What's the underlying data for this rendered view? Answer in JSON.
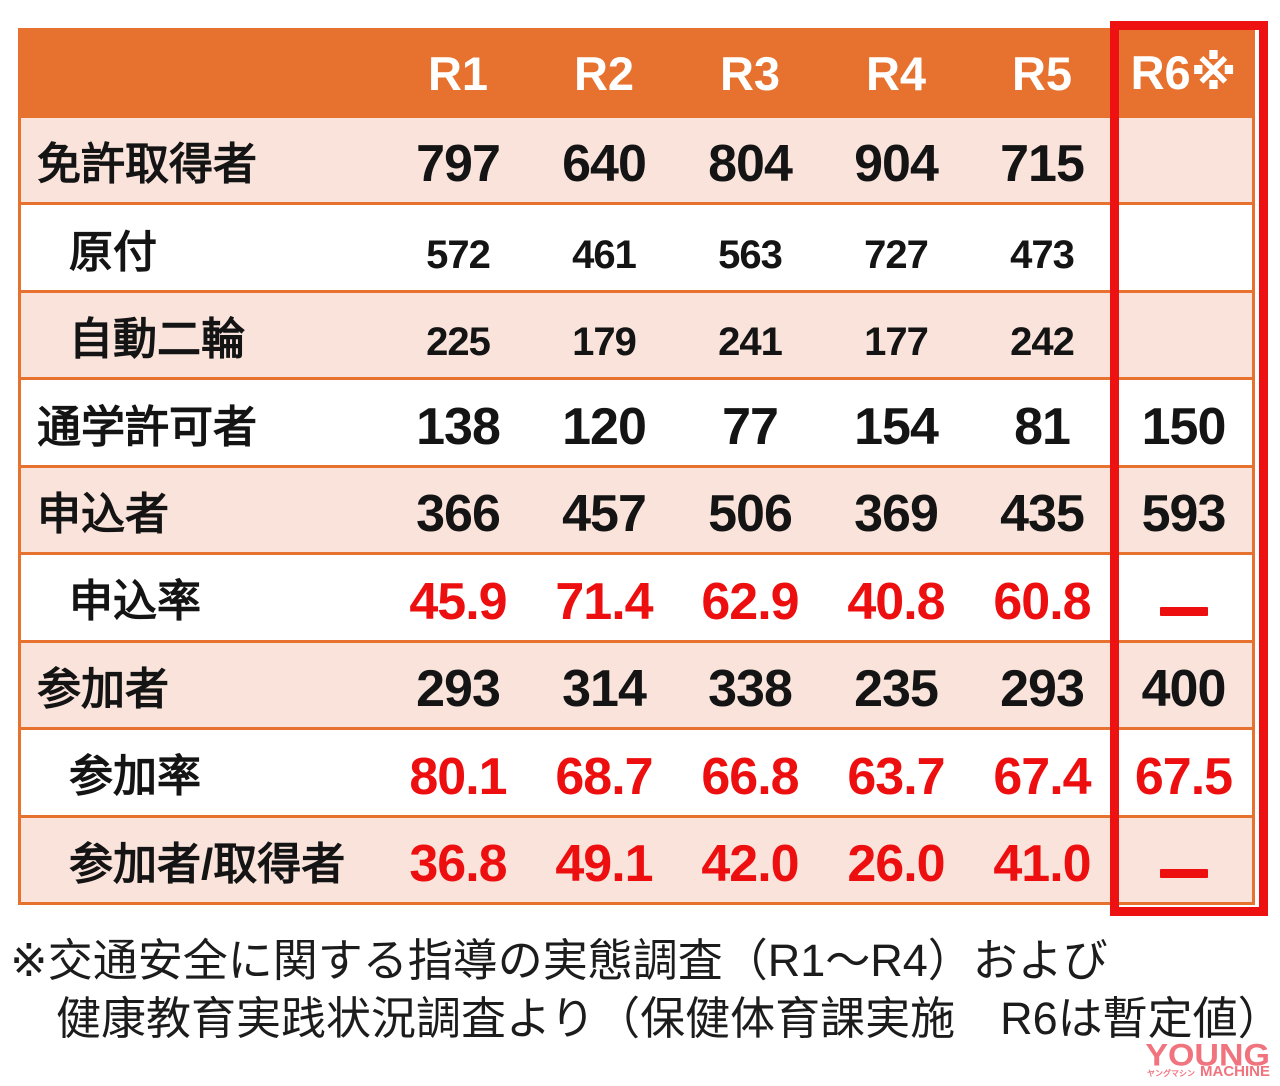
{
  "colors": {
    "header_bg": "#e7722f",
    "grid_line": "#e7722f",
    "row_pink": "#f9e3db",
    "row_white": "#ffffff",
    "value_red": "#ed0f0f",
    "highlight_red": "#ed1111",
    "text_black": "#141414",
    "logo_pink": "#f0737e"
  },
  "table": {
    "header": {
      "cells": [
        "",
        "R1",
        "R2",
        "R3",
        "R4",
        "R5",
        "R6※"
      ]
    },
    "rows": [
      {
        "label": "免許取得者",
        "indent": false,
        "values_size": "large",
        "values_color": "black",
        "values": [
          "797",
          "640",
          "804",
          "904",
          "715",
          ""
        ]
      },
      {
        "label": "原付",
        "indent": true,
        "values_size": "small",
        "values_color": "black",
        "values": [
          "572",
          "461",
          "563",
          "727",
          "473",
          ""
        ]
      },
      {
        "label": "自動二輪",
        "indent": true,
        "values_size": "small",
        "values_color": "black",
        "values": [
          "225",
          "179",
          "241",
          "177",
          "242",
          ""
        ]
      },
      {
        "label": "通学許可者",
        "indent": false,
        "values_size": "large",
        "values_color": "black",
        "values": [
          "138",
          "120",
          "77",
          "154",
          "81",
          "150"
        ]
      },
      {
        "label": "申込者",
        "indent": false,
        "values_size": "large",
        "values_color": "black",
        "values": [
          "366",
          "457",
          "506",
          "369",
          "435",
          "593"
        ]
      },
      {
        "label": "申込率",
        "indent": true,
        "values_size": "large",
        "values_color": "red",
        "values": [
          "45.9",
          "71.4",
          "62.9",
          "40.8",
          "60.8",
          "—"
        ]
      },
      {
        "label": "参加者",
        "indent": false,
        "values_size": "large",
        "values_color": "black",
        "values": [
          "293",
          "314",
          "338",
          "235",
          "293",
          "400"
        ]
      },
      {
        "label": "参加率",
        "indent": true,
        "values_size": "large",
        "values_color": "red",
        "values": [
          "80.1",
          "68.7",
          "66.8",
          "63.7",
          "67.4",
          "67.5"
        ]
      },
      {
        "label": "参加者/取得者",
        "indent": true,
        "values_size": "large",
        "values_color": "red",
        "values": [
          "36.8",
          "49.1",
          "42.0",
          "26.0",
          "41.0",
          "—"
        ]
      }
    ]
  },
  "footnote": {
    "line1": "※交通安全に関する指導の実態調査（R1～R4）および",
    "line2": "健康教育実践状況調査より（保健体育課実施　R6は暫定値）"
  },
  "logo": {
    "young": "YOUNG",
    "katakana": "ヤングマシン",
    "machine": "MACHINE"
  },
  "chart_data": {
    "type": "table",
    "columns": [
      "",
      "R1",
      "R2",
      "R3",
      "R4",
      "R5",
      "R6※"
    ],
    "rows": [
      {
        "label": "免許取得者",
        "values": [
          797,
          640,
          804,
          904,
          715,
          null
        ]
      },
      {
        "label": "原付",
        "values": [
          572,
          461,
          563,
          727,
          473,
          null
        ]
      },
      {
        "label": "自動二輪",
        "values": [
          225,
          179,
          241,
          177,
          242,
          null
        ]
      },
      {
        "label": "通学許可者",
        "values": [
          138,
          120,
          77,
          154,
          81,
          150
        ]
      },
      {
        "label": "申込者",
        "values": [
          366,
          457,
          506,
          369,
          435,
          593
        ]
      },
      {
        "label": "申込率",
        "values": [
          45.9,
          71.4,
          62.9,
          40.8,
          60.8,
          null
        ]
      },
      {
        "label": "参加者",
        "values": [
          293,
          314,
          338,
          235,
          293,
          400
        ]
      },
      {
        "label": "参加率",
        "values": [
          80.1,
          68.7,
          66.8,
          63.7,
          67.4,
          67.5
        ]
      },
      {
        "label": "参加者/取得者",
        "values": [
          36.8,
          49.1,
          42.0,
          26.0,
          41.0,
          null
        ]
      }
    ],
    "highlighted_column": "R6※",
    "rate_rows_percent": [
      "申込率",
      "参加率",
      "参加者/取得者"
    ],
    "footnote": "※交通安全に関する指導の実態調査（R1～R4）および健康教育実践状況調査より（保健体育課実施　R6は暫定値）",
    "legend_position": "none",
    "grid": true
  }
}
